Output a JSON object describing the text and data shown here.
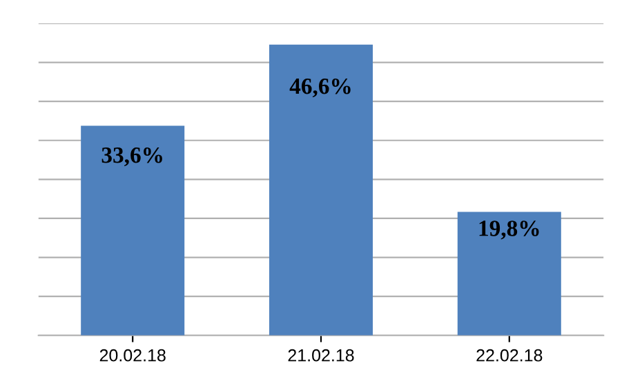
{
  "chart_data": {
    "type": "bar",
    "categories": [
      "20.02.18",
      "21.02.18",
      "22.02.18"
    ],
    "values": [
      33.6,
      46.6,
      19.8
    ],
    "value_labels": [
      "33,6%",
      "46,6%",
      "19,8%"
    ],
    "color": "#4f81bd",
    "ylim": [
      0,
      50
    ],
    "yticks": [
      {
        "value": 0,
        "label": null
      },
      {
        "value": 6.25,
        "label": null
      },
      {
        "value": 12.5,
        "label": null
      },
      {
        "value": 18.75,
        "label": null
      },
      {
        "value": 25,
        "label": null
      },
      {
        "value": 31.25,
        "label": null
      },
      {
        "value": 37.5,
        "label": null
      },
      {
        "value": 43.75,
        "label": null
      },
      {
        "value": 50,
        "label": null
      }
    ],
    "grid": "y",
    "tick_labels": "x"
  }
}
